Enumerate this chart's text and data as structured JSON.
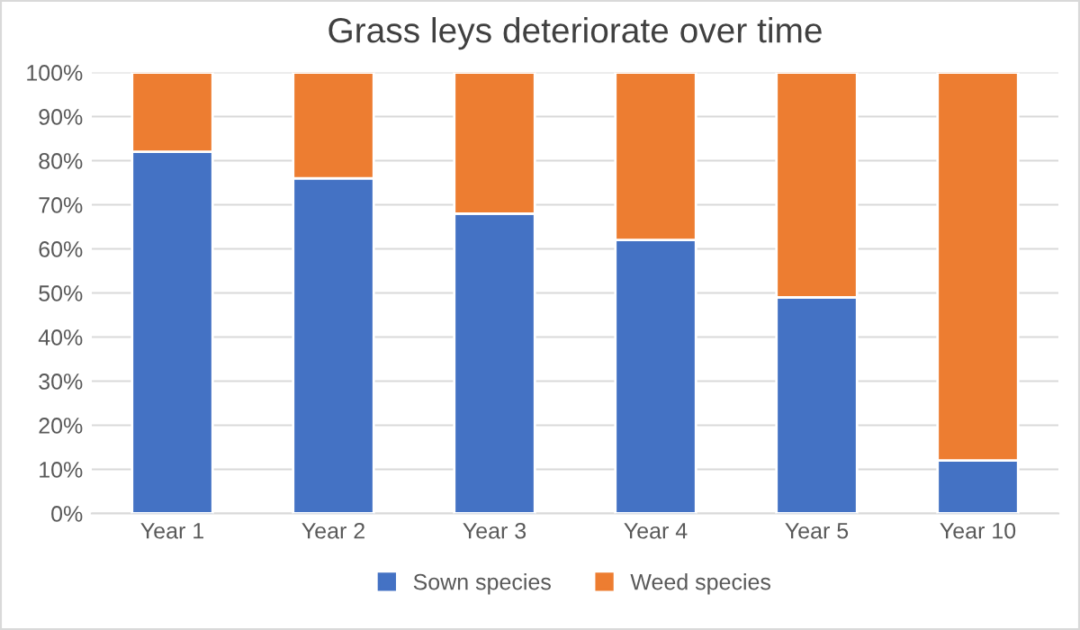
{
  "chart_data": {
    "type": "bar",
    "title": "Grass leys deteriorate over time",
    "categories": [
      "Year 1",
      "Year 2",
      "Year 3",
      "Year 4",
      "Year 5",
      "Year 10"
    ],
    "stacked": true,
    "series": [
      {
        "name": "Sown species",
        "color": "#4472c4",
        "values": [
          82,
          76,
          68,
          62,
          49,
          12
        ]
      },
      {
        "name": "Weed species",
        "color": "#ed7d31",
        "values": [
          18,
          24,
          32,
          38,
          51,
          88
        ]
      }
    ],
    "ylim": [
      0,
      100
    ],
    "yticks": [
      {
        "value": 0,
        "label": "0%"
      },
      {
        "value": 10,
        "label": "10%"
      },
      {
        "value": 20,
        "label": "20%"
      },
      {
        "value": 30,
        "label": "30%"
      },
      {
        "value": 40,
        "label": "40%"
      },
      {
        "value": 50,
        "label": "50%"
      },
      {
        "value": 60,
        "label": "60%"
      },
      {
        "value": 70,
        "label": "70%"
      },
      {
        "value": 80,
        "label": "80%"
      },
      {
        "value": 90,
        "label": "90%"
      },
      {
        "value": 100,
        "label": "100%"
      }
    ],
    "grid": "y",
    "legend": "bottom"
  }
}
